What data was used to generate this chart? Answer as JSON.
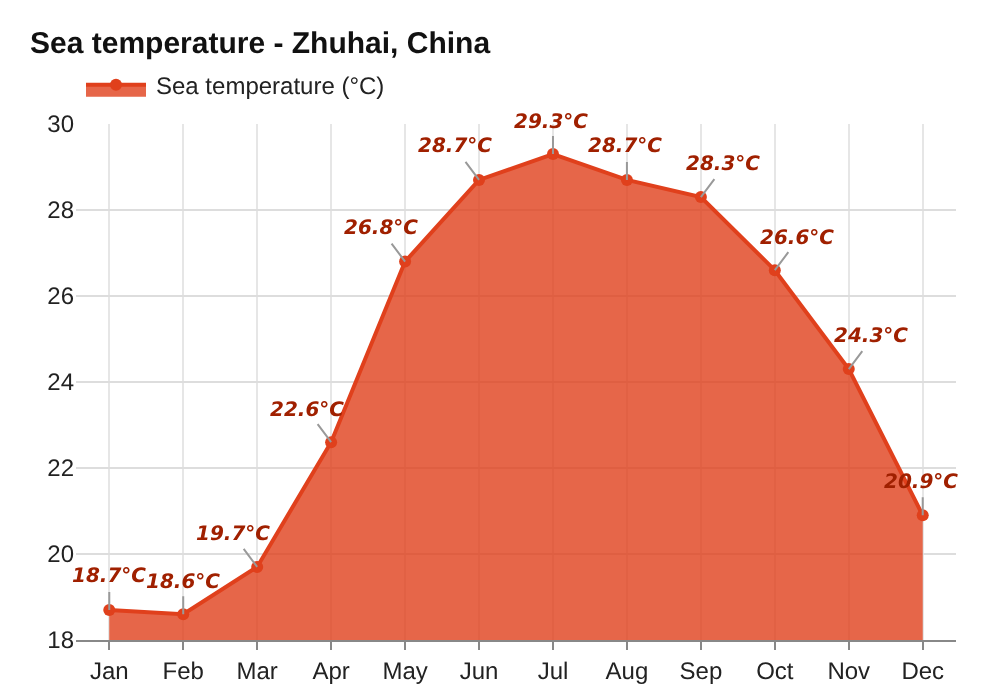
{
  "chart_data": {
    "type": "area",
    "title": "Sea temperature - Zhuhai, China",
    "categories": [
      "Jan",
      "Feb",
      "Mar",
      "Apr",
      "May",
      "Jun",
      "Jul",
      "Aug",
      "Sep",
      "Oct",
      "Nov",
      "Dec"
    ],
    "series": [
      {
        "name": "Sea temperature (°C)",
        "color": "#e0401c",
        "values": [
          18.7,
          18.6,
          19.7,
          22.6,
          26.8,
          28.7,
          29.3,
          28.7,
          28.3,
          26.6,
          24.3,
          20.9
        ],
        "value_labels": [
          "18.7°C",
          "18.6°C",
          "19.7°C",
          "22.6°C",
          "26.8°C",
          "28.7°C",
          "29.3°C",
          "28.7°C",
          "28.3°C",
          "26.6°C",
          "24.3°C",
          "20.9°C"
        ]
      }
    ],
    "ylim": [
      18,
      30
    ],
    "yticks": [
      18,
      20,
      22,
      24,
      26,
      28,
      30
    ],
    "grid": true,
    "legend": "top left",
    "marker": "circle",
    "line_style": "solid"
  }
}
